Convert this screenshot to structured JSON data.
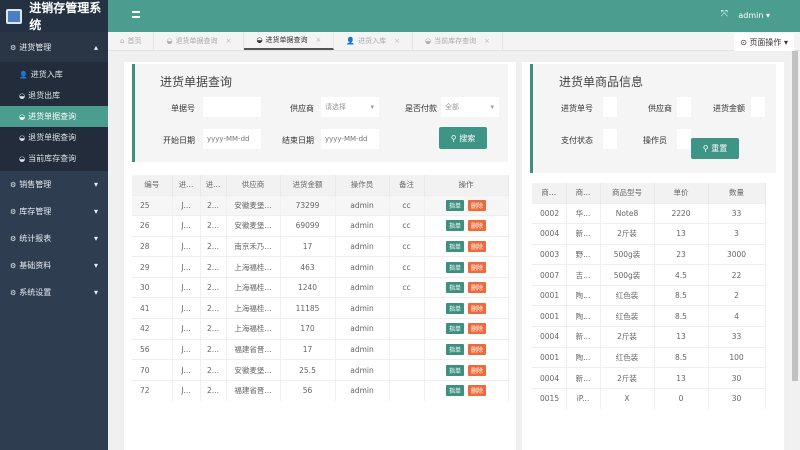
{
  "app": {
    "title": "进销存管理系统",
    "user": "admin"
  },
  "sidebar": {
    "groups": [
      {
        "label": "进货管理",
        "expanded": true,
        "items": [
          {
            "label": "进货入库",
            "icon": "user-icon"
          },
          {
            "label": "退货出库",
            "icon": "dashboard-icon"
          },
          {
            "label": "进货单据查询",
            "icon": "dashboard-icon",
            "active": true
          },
          {
            "label": "退货单据查询",
            "icon": "dashboard-icon"
          },
          {
            "label": "当前库存查询",
            "icon": "dashboard-icon"
          }
        ]
      },
      {
        "label": "销售管理"
      },
      {
        "label": "库存管理"
      },
      {
        "label": "统计报表"
      },
      {
        "label": "基础资料"
      },
      {
        "label": "系统设置"
      }
    ]
  },
  "tabs": [
    {
      "label": "首页"
    },
    {
      "label": "退货单据查询"
    },
    {
      "label": "进货单据查询",
      "active": true
    },
    {
      "label": "进货入库"
    },
    {
      "label": "当前库存查询"
    }
  ],
  "page_ops": "页面操作",
  "left": {
    "title": "进货单据查询",
    "fields": {
      "no_label": "单据号",
      "supplier_label": "供应商",
      "supplier_value": "请选择",
      "paid_label": "是否付款",
      "paid_value": "全部",
      "start_label": "开始日期",
      "start_ph": "yyyy-MM-dd",
      "end_label": "结束日期",
      "end_ph": "yyyy-MM-dd"
    },
    "search": "搜索",
    "columns": [
      "编号",
      "进...",
      "进...",
      "供应商",
      "进货金额",
      "操作员",
      "备注",
      "操作"
    ],
    "actions": [
      "指单",
      "删除"
    ],
    "rows": [
      [
        "25",
        "J...",
        "2...",
        "安徽麦堡...",
        "73299",
        "admin",
        "cc"
      ],
      [
        "26",
        "J...",
        "2...",
        "安徽麦堡...",
        "69099",
        "admin",
        "cc"
      ],
      [
        "28",
        "J...",
        "2...",
        "南京禾乃...",
        "17",
        "admin",
        "cc"
      ],
      [
        "29",
        "J...",
        "2...",
        "上海福桂...",
        "463",
        "admin",
        "cc"
      ],
      [
        "30",
        "J...",
        "2...",
        "上海福桂...",
        "1240",
        "admin",
        "cc"
      ],
      [
        "41",
        "J...",
        "2...",
        "上海福桂...",
        "11185",
        "admin",
        ""
      ],
      [
        "42",
        "J...",
        "2...",
        "上海福桂...",
        "170",
        "admin",
        ""
      ],
      [
        "56",
        "J...",
        "2...",
        "福建省晋...",
        "17",
        "admin",
        ""
      ],
      [
        "70",
        "J...",
        "2...",
        "安徽麦堡...",
        "25.5",
        "admin",
        ""
      ],
      [
        "72",
        "J...",
        "2...",
        "福建省晋...",
        "56",
        "admin",
        ""
      ]
    ]
  },
  "right": {
    "title": "进货单商品信息",
    "labels": [
      "进货单号",
      "供应商",
      "进货金额",
      "支付状态",
      "操作员"
    ],
    "reset": "重置",
    "columns": [
      "商...",
      "商...",
      "商品型号",
      "单价",
      "数量"
    ],
    "rows": [
      [
        "0002",
        "华...",
        "Note8",
        "2220",
        "33"
      ],
      [
        "0004",
        "新...",
        "2斤装",
        "13",
        "3"
      ],
      [
        "0003",
        "野...",
        "500g装",
        "23",
        "3000"
      ],
      [
        "0007",
        "吉...",
        "500g装",
        "4.5",
        "22"
      ],
      [
        "0001",
        "陶...",
        "红色装",
        "8.5",
        "2"
      ],
      [
        "0001",
        "陶...",
        "红色装",
        "8.5",
        "4"
      ],
      [
        "0004",
        "新...",
        "2斤装",
        "13",
        "33"
      ],
      [
        "0001",
        "陶...",
        "红色装",
        "8.5",
        "100"
      ],
      [
        "0004",
        "新...",
        "2斤装",
        "13",
        "30"
      ],
      [
        "0015",
        "iP...",
        "X",
        "0",
        "30"
      ]
    ]
  }
}
